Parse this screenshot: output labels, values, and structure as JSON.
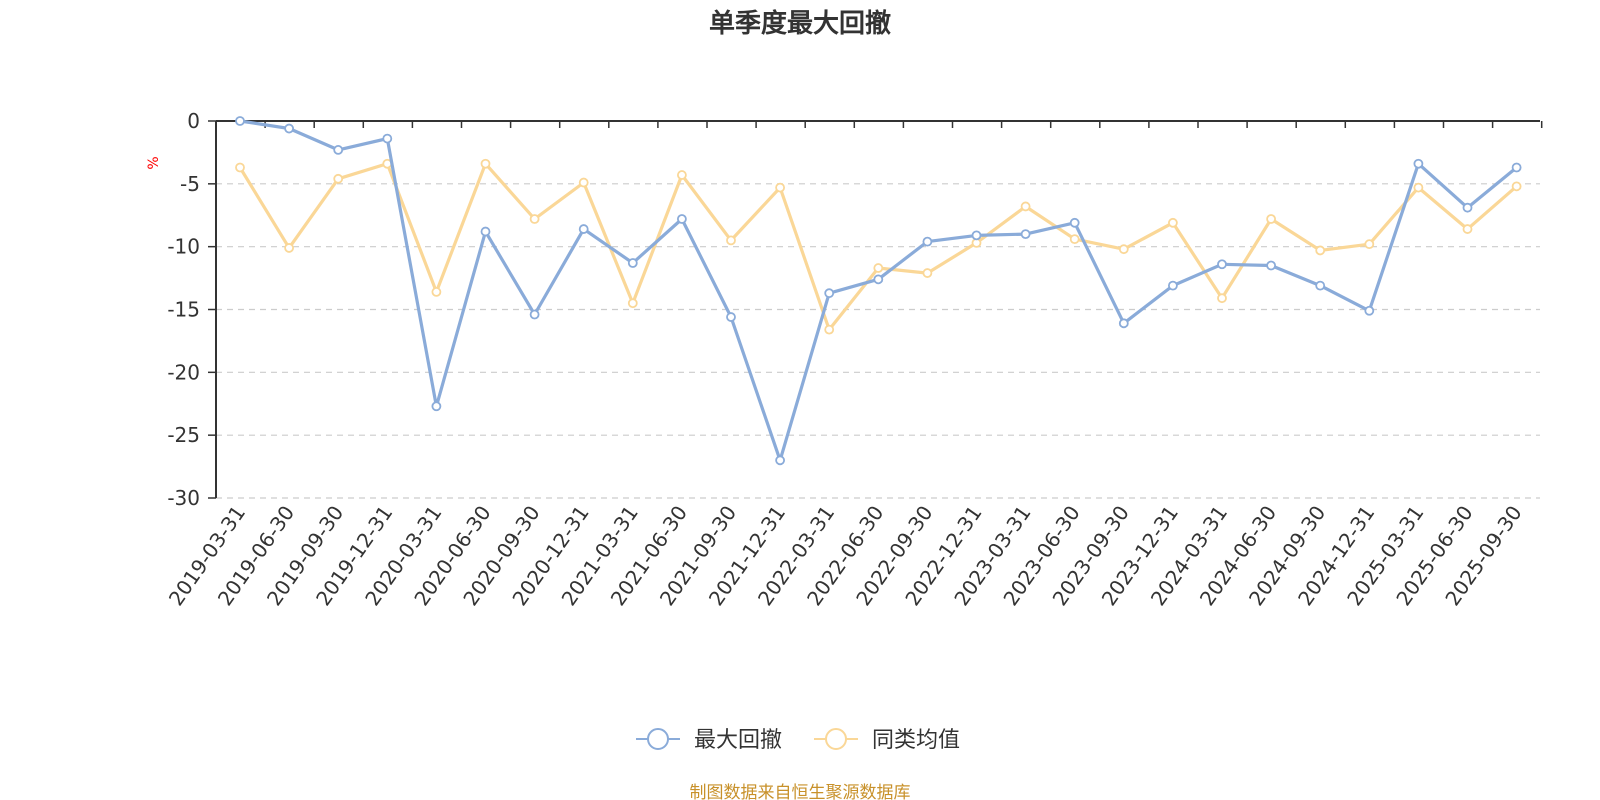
{
  "chart_data": {
    "type": "line",
    "title": "单季度最大回撤",
    "ylabel": "%",
    "ylim": [
      -30,
      0
    ],
    "yticks": [
      0,
      -5,
      -10,
      -15,
      -20,
      -25,
      -30
    ],
    "grid": true,
    "legend_position": "bottom-center",
    "categories": [
      "2019-03-31",
      "2019-06-30",
      "2019-09-30",
      "2019-12-31",
      "2020-03-31",
      "2020-06-30",
      "2020-09-30",
      "2020-12-31",
      "2021-03-31",
      "2021-06-30",
      "2021-09-30",
      "2021-12-31",
      "2022-03-31",
      "2022-06-30",
      "2022-09-30",
      "2022-12-31",
      "2023-03-31",
      "2023-06-30",
      "2023-09-30",
      "2023-12-31",
      "2024-03-31",
      "2024-06-30",
      "2024-09-30",
      "2024-12-31",
      "2025-03-31",
      "2025-06-30",
      "2025-09-30"
    ],
    "series": [
      {
        "name": "最大回撤",
        "color": "#8aabd9",
        "values": [
          0,
          -0.6,
          -2.3,
          -1.4,
          -22.7,
          -8.8,
          -15.4,
          -8.6,
          -11.3,
          -7.8,
          -15.6,
          -27.0,
          -13.7,
          -12.6,
          -9.6,
          -9.1,
          -9.0,
          -8.1,
          -16.1,
          -13.1,
          -11.4,
          -11.5,
          -13.1,
          -15.1,
          -3.4,
          -6.9,
          -3.7
        ]
      },
      {
        "name": "同类均值",
        "color": "#fad797",
        "values": [
          -3.7,
          -10.1,
          -4.6,
          -3.4,
          -13.6,
          -3.4,
          -7.8,
          -4.9,
          -14.5,
          -4.3,
          -9.5,
          -5.3,
          -16.6,
          -11.7,
          -12.1,
          -9.7,
          -6.8,
          -9.4,
          -10.2,
          -8.1,
          -14.1,
          -7.8,
          -10.3,
          -9.8,
          -5.3,
          -8.6,
          -5.2
        ]
      }
    ]
  },
  "source": "制图数据来自恒生聚源数据库"
}
